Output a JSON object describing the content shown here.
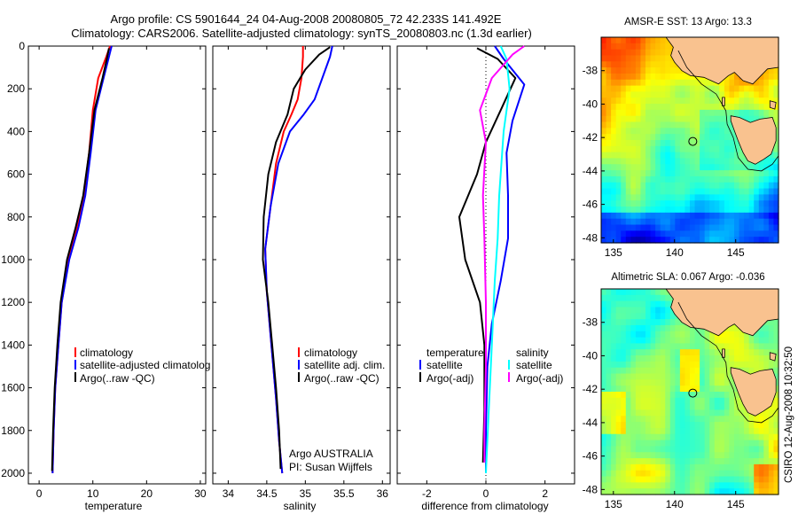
{
  "figure": {
    "title_line1": "Argo profile: CS 5901644_24 04-Aug-2008 20080805_72 42.233S 141.492E",
    "title_line2": "Climatology: CARS2006. Satellite-adjusted climatology: synTS_20080803.nc (1.3d earlier)",
    "credit": "CSIRO 12-Aug-2008 10:32:50",
    "colors": {
      "red": "#ff0000",
      "blue": "#0000ff",
      "black": "#000000",
      "cyan": "#00ffff",
      "magenta": "#ff00ff",
      "land": "#f9c28f"
    }
  },
  "chart_data": [
    {
      "id": "temperature-panel",
      "type": "line",
      "xlabel": "temperature",
      "ylabel": "",
      "xlim": [
        -2,
        31
      ],
      "ylim": [
        2050,
        0
      ],
      "x_ticks": [
        0,
        10,
        20,
        30
      ],
      "y_ticks": [
        0,
        200,
        400,
        600,
        800,
        1000,
        1200,
        1400,
        1600,
        1800,
        2000
      ],
      "legend": [
        "climatology",
        "satellite-adjusted climatolog",
        "Argo(..raw -QC)"
      ],
      "legend_position": "lower-middle",
      "series": [
        {
          "name": "climatology",
          "color": "red",
          "points": [
            [
              13.2,
              0
            ],
            [
              12.5,
              50
            ],
            [
              11.0,
              150
            ],
            [
              10.0,
              300
            ],
            [
              9.3,
              500
            ],
            [
              8.3,
              700
            ],
            [
              7.0,
              850
            ],
            [
              5.5,
              1000
            ],
            [
              4.2,
              1200
            ],
            [
              3.6,
              1400
            ],
            [
              3.0,
              1600
            ],
            [
              2.7,
              1800
            ],
            [
              2.5,
              2000
            ]
          ]
        },
        {
          "name": "satellite-adjusted climatolog",
          "color": "blue",
          "points": [
            [
              13.5,
              0
            ],
            [
              13.0,
              50
            ],
            [
              12.0,
              150
            ],
            [
              10.5,
              300
            ],
            [
              9.6,
              500
            ],
            [
              8.6,
              700
            ],
            [
              7.3,
              850
            ],
            [
              5.6,
              1000
            ],
            [
              4.2,
              1200
            ],
            [
              3.6,
              1400
            ],
            [
              3.0,
              1600
            ],
            [
              2.7,
              1800
            ],
            [
              2.5,
              2000
            ]
          ]
        },
        {
          "name": "Argo(..raw -QC)",
          "color": "black",
          "points": [
            [
              13.0,
              10
            ],
            [
              12.6,
              60
            ],
            [
              11.8,
              150
            ],
            [
              10.3,
              300
            ],
            [
              9.3,
              500
            ],
            [
              8.2,
              700
            ],
            [
              6.8,
              850
            ],
            [
              5.2,
              1000
            ],
            [
              4.0,
              1200
            ],
            [
              3.4,
              1400
            ],
            [
              2.9,
              1600
            ],
            [
              2.6,
              1800
            ],
            [
              2.4,
              1990
            ]
          ]
        }
      ]
    },
    {
      "id": "salinity-panel",
      "type": "line",
      "xlabel": "salinity",
      "ylabel": "",
      "xlim": [
        33.8,
        36.1
      ],
      "ylim": [
        2050,
        0
      ],
      "x_ticks": [
        34,
        34.5,
        35,
        35.5,
        36
      ],
      "x_tick_labels": [
        "34",
        "34.5",
        "35",
        "35.5",
        "36"
      ],
      "legend": [
        "climatology",
        "satellite adj. clim.",
        "Argo(..raw -QC)"
      ],
      "legend_position": "lower-right",
      "annotation": [
        "Argo AUSTRALIA",
        "PI: Susan Wijffels"
      ],
      "series": [
        {
          "name": "climatology",
          "color": "red",
          "points": [
            [
              34.97,
              0
            ],
            [
              34.97,
              50
            ],
            [
              34.95,
              150
            ],
            [
              34.9,
              250
            ],
            [
              34.82,
              320
            ],
            [
              34.72,
              400
            ],
            [
              34.62,
              550
            ],
            [
              34.55,
              750
            ],
            [
              34.48,
              950
            ],
            [
              34.5,
              1150
            ],
            [
              34.56,
              1400
            ],
            [
              34.62,
              1650
            ],
            [
              34.66,
              1850
            ],
            [
              34.7,
              2000
            ]
          ]
        },
        {
          "name": "satellite adj. clim.",
          "color": "blue",
          "points": [
            [
              35.35,
              0
            ],
            [
              35.32,
              50
            ],
            [
              35.22,
              150
            ],
            [
              35.12,
              250
            ],
            [
              34.98,
              320
            ],
            [
              34.8,
              400
            ],
            [
              34.65,
              550
            ],
            [
              34.55,
              750
            ],
            [
              34.48,
              950
            ],
            [
              34.5,
              1150
            ],
            [
              34.56,
              1400
            ],
            [
              34.62,
              1650
            ],
            [
              34.66,
              1850
            ],
            [
              34.7,
              2000
            ]
          ]
        },
        {
          "name": "Argo(..raw -QC)",
          "color": "black",
          "points": [
            [
              35.32,
              5
            ],
            [
              35.18,
              40
            ],
            [
              35.0,
              110
            ],
            [
              34.85,
              200
            ],
            [
              34.77,
              320
            ],
            [
              34.62,
              450
            ],
            [
              34.52,
              600
            ],
            [
              34.46,
              800
            ],
            [
              34.45,
              1000
            ],
            [
              34.52,
              1200
            ],
            [
              34.57,
              1400
            ],
            [
              34.62,
              1600
            ],
            [
              34.66,
              1800
            ],
            [
              34.68,
              1980
            ]
          ]
        }
      ]
    },
    {
      "id": "difference-panel",
      "type": "line",
      "xlabel": "difference from climatology",
      "ylabel": "",
      "xlim": [
        -3,
        3
      ],
      "ylim": [
        2050,
        0
      ],
      "x_ticks": [
        -2,
        0,
        2
      ],
      "legend_groups": [
        {
          "title": "temperature",
          "items": [
            "satellite",
            "Argo(-adj)"
          ]
        },
        {
          "title": "salinity",
          "items": [
            "satellite",
            "Argo(-adj)"
          ]
        }
      ],
      "legend_position": "lower-middle",
      "series": [
        {
          "name": "temperature satellite",
          "color": "blue",
          "points": [
            [
              0.3,
              0
            ],
            [
              0.6,
              60
            ],
            [
              1.3,
              180
            ],
            [
              0.9,
              350
            ],
            [
              0.7,
              500
            ],
            [
              0.75,
              700
            ],
            [
              0.75,
              900
            ],
            [
              0.5,
              1100
            ],
            [
              0.2,
              1300
            ],
            [
              0.05,
              1500
            ],
            [
              0.0,
              1800
            ],
            [
              0.0,
              2000
            ]
          ]
        },
        {
          "name": "temperature Argo(-adj)",
          "color": "black",
          "points": [
            [
              -0.3,
              10
            ],
            [
              0.4,
              60
            ],
            [
              1.0,
              150
            ],
            [
              0.5,
              300
            ],
            [
              0.0,
              450
            ],
            [
              -0.3,
              600
            ],
            [
              -0.9,
              800
            ],
            [
              -0.7,
              1000
            ],
            [
              -0.2,
              1200
            ],
            [
              -0.05,
              1400
            ],
            [
              -0.05,
              1700
            ],
            [
              -0.1,
              1950
            ]
          ]
        },
        {
          "name": "salinity satellite",
          "color": "cyan",
          "points": [
            [
              0.5,
              0
            ],
            [
              0.7,
              60
            ],
            [
              0.8,
              200
            ],
            [
              0.6,
              400
            ],
            [
              0.45,
              700
            ],
            [
              0.4,
              900
            ],
            [
              0.3,
              1100
            ],
            [
              0.2,
              1400
            ],
            [
              0.1,
              1700
            ],
            [
              0.0,
              2000
            ]
          ]
        },
        {
          "name": "salinity Argo(-adj)",
          "color": "magenta",
          "points": [
            [
              1.3,
              0
            ],
            [
              0.9,
              40
            ],
            [
              0.2,
              150
            ],
            [
              -0.2,
              300
            ],
            [
              0.0,
              450
            ],
            [
              -0.1,
              700
            ],
            [
              -0.05,
              900
            ],
            [
              0.0,
              1200
            ],
            [
              0.0,
              1500
            ],
            [
              -0.05,
              1800
            ],
            [
              -0.05,
              1950
            ]
          ]
        }
      ],
      "zero_line": true
    },
    {
      "id": "sst-map",
      "type": "heatmap",
      "title": "AMSR-E SST: 13 Argo: 13.3",
      "xlim": [
        134,
        148.5
      ],
      "ylim": [
        -48.3,
        -36
      ],
      "x_ticks": [
        135,
        140,
        145
      ],
      "y_ticks": [
        -38,
        -40,
        -42,
        -44,
        -46,
        -48
      ],
      "marker": {
        "lon": 141.492,
        "lat": -42.233
      }
    },
    {
      "id": "sla-map",
      "type": "heatmap",
      "title": "Altimetric SLA: 0.067 Argo: -0.036",
      "xlim": [
        134,
        148.5
      ],
      "ylim": [
        -48.3,
        -36
      ],
      "x_ticks": [
        135,
        140,
        145
      ],
      "y_ticks": [
        -38,
        -40,
        -42,
        -44,
        -46,
        -48
      ],
      "marker": {
        "lon": 141.492,
        "lat": -42.233
      }
    }
  ]
}
